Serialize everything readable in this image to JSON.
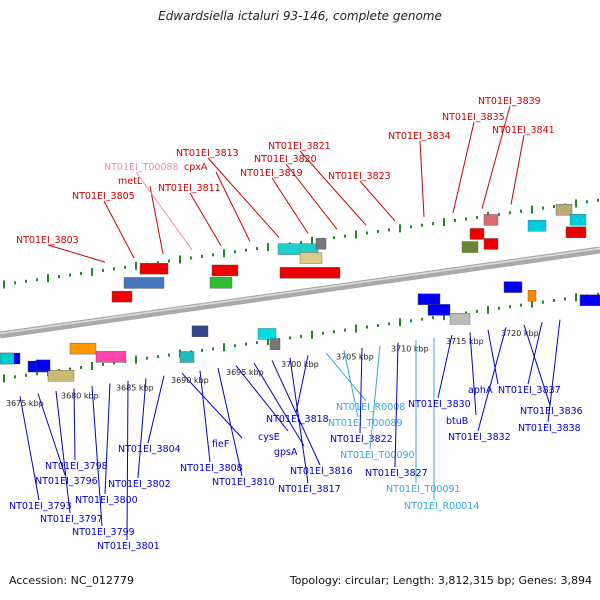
{
  "title": "Edwardsiella ictaluri 93-146, complete genome",
  "footer": {
    "accession": "Accession: NC_012779",
    "topology": "Topology: circular; Length: 3,812,315 bp; Genes: 3,894"
  },
  "colors": {
    "upper_label": "#cc0000",
    "lower_label": "#0000cc",
    "rna_label_pink": "#ee88bb",
    "rna_label_cyan": "#33aadd",
    "backbone": "#999999",
    "tick": "#228822"
  },
  "scale_labels": [
    "3675 kbp",
    "3680 kbp",
    "3685 kbp",
    "3690 kbp",
    "3695 kbp",
    "3700 kbp",
    "3705 kbp",
    "3710 kbp",
    "3715 kbp",
    "3720 kbp"
  ],
  "upper_labels": [
    {
      "text": "NT01EI_3803",
      "kind": "gene"
    },
    {
      "text": "NT01EI_3805",
      "kind": "gene"
    },
    {
      "text": "metL",
      "kind": "gene"
    },
    {
      "text": "NT01EI_T00088",
      "kind": "rna"
    },
    {
      "text": "NT01EI_3811",
      "kind": "gene"
    },
    {
      "text": "cpxA",
      "kind": "gene"
    },
    {
      "text": "NT01EI_3813",
      "kind": "gene"
    },
    {
      "text": "NT01EI_3819",
      "kind": "gene"
    },
    {
      "text": "NT01EI_3820",
      "kind": "gene"
    },
    {
      "text": "NT01EI_3821",
      "kind": "gene"
    },
    {
      "text": "NT01EI_3823",
      "kind": "gene"
    },
    {
      "text": "NT01EI_3834",
      "kind": "gene"
    },
    {
      "text": "NT01EI_3835",
      "kind": "gene"
    },
    {
      "text": "NT01EI_3839",
      "kind": "gene"
    },
    {
      "text": "NT01EI_3841",
      "kind": "gene"
    }
  ],
  "lower_labels": [
    {
      "text": "NT01EI_3793",
      "kind": "gene"
    },
    {
      "text": "NT01EI_3796",
      "kind": "gene"
    },
    {
      "text": "NT01EI_3797",
      "kind": "gene"
    },
    {
      "text": "NT01EI_3798",
      "kind": "gene"
    },
    {
      "text": "NT01EI_3799",
      "kind": "gene"
    },
    {
      "text": "NT01EI_3800",
      "kind": "gene"
    },
    {
      "text": "NT01EI_3801",
      "kind": "gene"
    },
    {
      "text": "NT01EI_3802",
      "kind": "gene"
    },
    {
      "text": "NT01EI_3804",
      "kind": "gene"
    },
    {
      "text": "fieF",
      "kind": "gene"
    },
    {
      "text": "NT01EI_3808",
      "kind": "gene"
    },
    {
      "text": "NT01EI_3810",
      "kind": "gene"
    },
    {
      "text": "cysE",
      "kind": "gene"
    },
    {
      "text": "gpsA",
      "kind": "gene"
    },
    {
      "text": "NT01EI_3816",
      "kind": "gene"
    },
    {
      "text": "NT01EI_3817",
      "kind": "gene"
    },
    {
      "text": "NT01EI_3818",
      "kind": "gene"
    },
    {
      "text": "NT01EI_R0008",
      "kind": "rna"
    },
    {
      "text": "NT01EI_T00089",
      "kind": "rna"
    },
    {
      "text": "NT01EI_3822",
      "kind": "gene"
    },
    {
      "text": "NT01EI_T00090",
      "kind": "rna"
    },
    {
      "text": "NT01EI_3827",
      "kind": "gene"
    },
    {
      "text": "NT01EI_T00091",
      "kind": "rna"
    },
    {
      "text": "NT01EI_R00014",
      "kind": "rna"
    },
    {
      "text": "NT01EI_3830",
      "kind": "gene"
    },
    {
      "text": "btuB",
      "kind": "gene"
    },
    {
      "text": "aphA",
      "kind": "gene"
    },
    {
      "text": "NT01EI_3832",
      "kind": "gene"
    },
    {
      "text": "NT01EI_3836",
      "kind": "gene"
    },
    {
      "text": "NT01EI_3837",
      "kind": "gene"
    },
    {
      "text": "NT01EI_3838",
      "kind": "gene"
    }
  ]
}
